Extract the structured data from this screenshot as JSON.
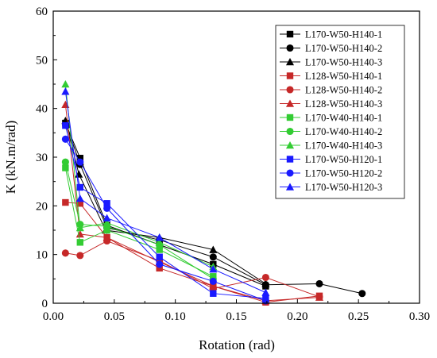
{
  "chart_data": {
    "type": "scatter",
    "xlabel": "Rotation (rad)",
    "ylabel": "K (kN.m/rad)",
    "xlim": [
      0.0,
      0.3
    ],
    "ylim": [
      0,
      60
    ],
    "xticks": [
      "0.00",
      "0.05",
      "0.10",
      "0.15",
      "0.20",
      "0.25",
      "0.30"
    ],
    "yticks": [
      "0",
      "10",
      "20",
      "30",
      "40",
      "50",
      "60"
    ],
    "grid": false,
    "legend_position": "top-right",
    "series": [
      {
        "name": "L170-W50-H140-1",
        "color": "#000000",
        "marker": "square",
        "x": [
          0.01,
          0.022,
          0.044,
          0.087,
          0.131,
          0.174
        ],
        "y": [
          37.0,
          29.8,
          16.0,
          12.0,
          8.0,
          3.5
        ]
      },
      {
        "name": "L170-W50-H140-2",
        "color": "#000000",
        "marker": "circle",
        "x": [
          0.011,
          0.022,
          0.044,
          0.087,
          0.131,
          0.174,
          0.218,
          0.253
        ],
        "y": [
          36.5,
          28.5,
          15.5,
          13.0,
          9.5,
          3.8,
          4.0,
          2.0
        ]
      },
      {
        "name": "L170-W50-H140-3",
        "color": "#000000",
        "marker": "triangle",
        "x": [
          0.01,
          0.021,
          0.043,
          0.087,
          0.131,
          0.174
        ],
        "y": [
          37.5,
          26.5,
          15.0,
          13.5,
          11.0,
          4.0
        ]
      },
      {
        "name": "L128-W50-H140-1",
        "color": "#c62828",
        "marker": "square",
        "x": [
          0.01,
          0.022,
          0.044,
          0.087,
          0.131,
          0.174,
          0.218
        ],
        "y": [
          20.7,
          20.5,
          13.5,
          7.2,
          3.5,
          0.2,
          1.5
        ]
      },
      {
        "name": "L128-W50-H140-2",
        "color": "#c62828",
        "marker": "circle",
        "x": [
          0.01,
          0.022,
          0.044,
          0.087,
          0.131,
          0.174,
          0.218
        ],
        "y": [
          10.3,
          9.8,
          12.8,
          8.7,
          3.0,
          5.3,
          1.3
        ]
      },
      {
        "name": "L128-W50-H140-3",
        "color": "#c62828",
        "marker": "triangle",
        "x": [
          0.01,
          0.022,
          0.044,
          0.087,
          0.131,
          0.174,
          0.218
        ],
        "y": [
          40.8,
          14.2,
          13.5,
          8.5,
          3.5,
          0.5,
          1.2
        ]
      },
      {
        "name": "L170-W40-H140-1",
        "color": "#33cc33",
        "marker": "square",
        "x": [
          0.01,
          0.022,
          0.044,
          0.087,
          0.131
        ],
        "y": [
          27.8,
          12.5,
          15.0,
          11.0,
          5.5
        ]
      },
      {
        "name": "L170-W40-H140-2",
        "color": "#33cc33",
        "marker": "circle",
        "x": [
          0.01,
          0.022,
          0.044,
          0.087,
          0.131
        ],
        "y": [
          29.0,
          16.2,
          15.8,
          12.0,
          5.0
        ]
      },
      {
        "name": "L170-W40-H140-3",
        "color": "#33cc33",
        "marker": "triangle",
        "x": [
          0.01,
          0.022,
          0.044,
          0.087,
          0.131
        ],
        "y": [
          45.0,
          15.5,
          16.5,
          12.5,
          7.5
        ]
      },
      {
        "name": "L170-W50-H120-1",
        "color": "#1a1aff",
        "marker": "square",
        "x": [
          0.01,
          0.022,
          0.044,
          0.087,
          0.131,
          0.174
        ],
        "y": [
          36.5,
          23.8,
          20.5,
          9.5,
          2.0,
          1.0
        ]
      },
      {
        "name": "L170-W50-H120-2",
        "color": "#1a1aff",
        "marker": "circle",
        "x": [
          0.01,
          0.022,
          0.044,
          0.087,
          0.131,
          0.174
        ],
        "y": [
          33.7,
          29.0,
          19.5,
          8.0,
          4.5,
          0.5
        ]
      },
      {
        "name": "L170-W50-H120-3",
        "color": "#1a1aff",
        "marker": "triangle",
        "x": [
          0.01,
          0.022,
          0.044,
          0.087,
          0.131,
          0.174
        ],
        "y": [
          43.5,
          21.5,
          17.5,
          13.5,
          7.0,
          2.2
        ]
      }
    ]
  }
}
